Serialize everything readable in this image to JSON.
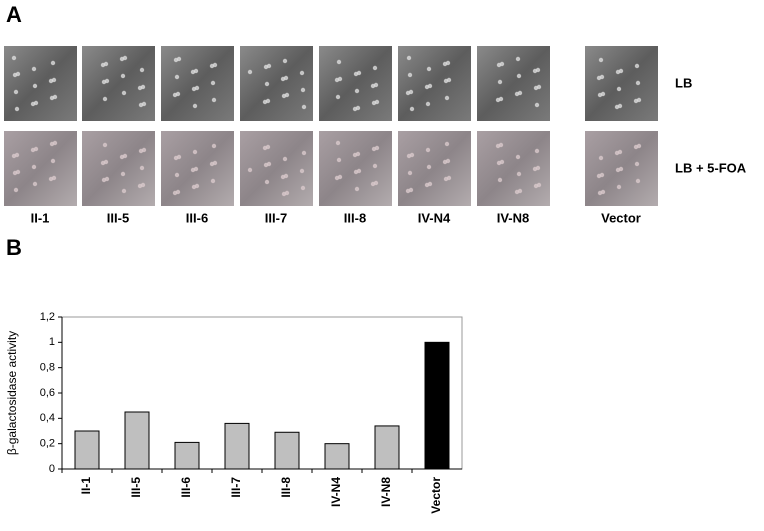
{
  "panel_a": {
    "label": "A",
    "rows": [
      "LB",
      "LB + 5-FOA"
    ],
    "columns": [
      "II-1",
      "III-5",
      "III-6",
      "III-7",
      "III-8",
      "IV-N4",
      "IV-N8",
      "Vector"
    ]
  },
  "panel_b_label": "B",
  "chart_data": {
    "type": "bar",
    "y_label": "β-galactosidase activity",
    "categories": [
      "II-1",
      "III-5",
      "III-6",
      "III-7",
      "III-8",
      "IV-N4",
      "IV-N8",
      "Vector"
    ],
    "values": [
      0.3,
      0.45,
      0.21,
      0.36,
      0.29,
      0.2,
      0.34,
      1.0
    ],
    "colors": [
      "#bfbfbf",
      "#bfbfbf",
      "#bfbfbf",
      "#bfbfbf",
      "#bfbfbf",
      "#bfbfbf",
      "#bfbfbf",
      "#000000"
    ],
    "ylim": [
      0,
      1.2
    ],
    "yticks": [
      0,
      {
        "value": 0.2,
        "label": "0,2"
      },
      {
        "value": 0.4,
        "label": "0,4"
      },
      {
        "value": 0.6,
        "label": "0,6"
      },
      {
        "value": 0.8,
        "label": "0,8"
      },
      1,
      {
        "value": 1.2,
        "label": "1,2"
      }
    ]
  }
}
